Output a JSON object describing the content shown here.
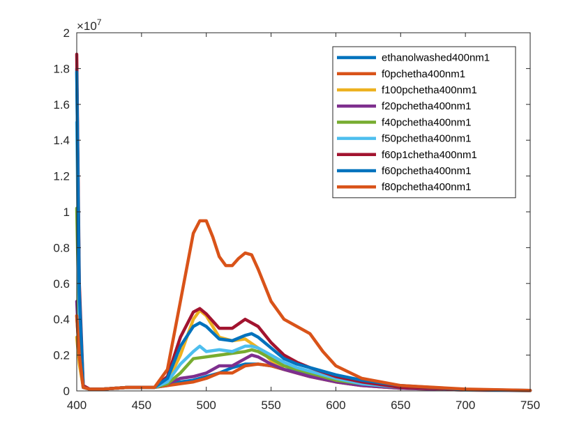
{
  "chart_data": {
    "type": "line",
    "title": "",
    "xlabel": "",
    "ylabel": "",
    "xlim": [
      400,
      750
    ],
    "ylim": [
      0,
      2
    ],
    "y_exponent_label": "×10",
    "y_exponent_power": "7",
    "x_ticks": [
      400,
      450,
      500,
      550,
      600,
      650,
      700,
      750
    ],
    "y_ticks": [
      0,
      0.2,
      0.4,
      0.6,
      0.8,
      1,
      1.2,
      1.4,
      1.6,
      1.8,
      2
    ],
    "x_tick_labels": [
      "400",
      "450",
      "500",
      "550",
      "600",
      "650",
      "700",
      "750"
    ],
    "y_tick_labels": [
      "0",
      "0.2",
      "0.4",
      "0.6",
      "0.8",
      "1",
      "1.2",
      "1.4",
      "1.6",
      "1.8",
      "2"
    ],
    "grid": false,
    "legend_position": "top-right",
    "series": [
      {
        "name": "ethanolwashed400nm1",
        "color": "#0072BD",
        "x": [
          400,
          402,
          405,
          410,
          420,
          440,
          460,
          470,
          480,
          490,
          500,
          510,
          520,
          530,
          540,
          550,
          560,
          570,
          580,
          600,
          620,
          650,
          700,
          750
        ],
        "y": [
          1.8,
          0.5,
          0.02,
          0.01,
          0.01,
          0.02,
          0.02,
          0.03,
          0.05,
          0.06,
          0.08,
          0.1,
          0.13,
          0.15,
          0.15,
          0.14,
          0.12,
          0.11,
          0.09,
          0.06,
          0.04,
          0.02,
          0.008,
          0.003
        ]
      },
      {
        "name": "f0pchetha400nm1",
        "color": "#D95319",
        "x": [
          400,
          402,
          405,
          410,
          420,
          440,
          460,
          470,
          480,
          490,
          500,
          510,
          520,
          530,
          540,
          550,
          560,
          570,
          580,
          600,
          620,
          650,
          700,
          750
        ],
        "y": [
          0.42,
          0.2,
          0.02,
          0.01,
          0.01,
          0.02,
          0.02,
          0.03,
          0.04,
          0.05,
          0.07,
          0.1,
          0.1,
          0.14,
          0.15,
          0.14,
          0.12,
          0.1,
          0.08,
          0.05,
          0.03,
          0.015,
          0.005,
          0.002
        ]
      },
      {
        "name": "f100pchetha400nm1",
        "color": "#EDB120",
        "x": [
          400,
          402,
          405,
          410,
          420,
          440,
          460,
          470,
          480,
          490,
          495,
          500,
          510,
          520,
          530,
          540,
          550,
          560,
          570,
          580,
          600,
          620,
          650,
          700,
          750
        ],
        "y": [
          0.3,
          0.15,
          0.02,
          0.01,
          0.01,
          0.02,
          0.02,
          0.05,
          0.2,
          0.4,
          0.45,
          0.42,
          0.3,
          0.28,
          0.29,
          0.24,
          0.17,
          0.12,
          0.1,
          0.08,
          0.05,
          0.03,
          0.015,
          0.005,
          0.002
        ]
      },
      {
        "name": "f20pchetha400nm1",
        "color": "#7E2F8E",
        "x": [
          400,
          402,
          405,
          410,
          420,
          440,
          460,
          470,
          480,
          490,
          500,
          510,
          520,
          530,
          535,
          540,
          550,
          560,
          570,
          580,
          600,
          620,
          650,
          700,
          750
        ],
        "y": [
          0.5,
          0.2,
          0.02,
          0.01,
          0.01,
          0.02,
          0.02,
          0.04,
          0.07,
          0.08,
          0.1,
          0.14,
          0.14,
          0.18,
          0.2,
          0.19,
          0.15,
          0.12,
          0.1,
          0.08,
          0.05,
          0.03,
          0.015,
          0.005,
          0.002
        ]
      },
      {
        "name": "f40pchetha400nm1",
        "color": "#77AC30",
        "x": [
          400,
          402,
          405,
          410,
          420,
          440,
          460,
          470,
          480,
          490,
          500,
          510,
          520,
          530,
          535,
          540,
          550,
          560,
          570,
          580,
          600,
          620,
          650,
          700,
          750
        ],
        "y": [
          1.02,
          0.3,
          0.02,
          0.01,
          0.01,
          0.02,
          0.02,
          0.04,
          0.1,
          0.18,
          0.19,
          0.2,
          0.21,
          0.22,
          0.23,
          0.22,
          0.18,
          0.14,
          0.12,
          0.1,
          0.06,
          0.04,
          0.02,
          0.006,
          0.002
        ]
      },
      {
        "name": "f50pchetha400nm1",
        "color": "#4DBEEE",
        "x": [
          400,
          402,
          405,
          410,
          420,
          440,
          460,
          470,
          480,
          490,
          495,
          500,
          510,
          520,
          530,
          535,
          540,
          550,
          560,
          570,
          580,
          600,
          620,
          650,
          700,
          750
        ],
        "y": [
          1.5,
          0.4,
          0.02,
          0.01,
          0.01,
          0.02,
          0.02,
          0.05,
          0.15,
          0.22,
          0.25,
          0.22,
          0.23,
          0.22,
          0.25,
          0.25,
          0.24,
          0.2,
          0.16,
          0.13,
          0.11,
          0.07,
          0.04,
          0.02,
          0.006,
          0.002
        ]
      },
      {
        "name": "f60p1chetha400nm1",
        "color": "#A2142F",
        "x": [
          400,
          402,
          405,
          410,
          420,
          440,
          460,
          470,
          480,
          490,
          495,
          500,
          510,
          520,
          530,
          540,
          550,
          560,
          570,
          580,
          600,
          620,
          650,
          700,
          750
        ],
        "y": [
          1.88,
          0.6,
          0.03,
          0.01,
          0.01,
          0.02,
          0.02,
          0.08,
          0.3,
          0.44,
          0.46,
          0.43,
          0.35,
          0.35,
          0.4,
          0.36,
          0.27,
          0.2,
          0.16,
          0.13,
          0.08,
          0.05,
          0.02,
          0.007,
          0.002
        ]
      },
      {
        "name": "f60pchetha400nm1",
        "color": "#0072BD",
        "x": [
          400,
          402,
          405,
          410,
          420,
          440,
          460,
          470,
          480,
          490,
          495,
          500,
          510,
          520,
          530,
          535,
          540,
          550,
          560,
          570,
          580,
          600,
          620,
          650,
          700,
          750
        ],
        "y": [
          1.78,
          0.55,
          0.02,
          0.01,
          0.01,
          0.02,
          0.02,
          0.07,
          0.25,
          0.36,
          0.38,
          0.36,
          0.29,
          0.28,
          0.31,
          0.32,
          0.3,
          0.24,
          0.18,
          0.15,
          0.13,
          0.09,
          0.06,
          0.03,
          0.008,
          0.002
        ]
      },
      {
        "name": "f80pchetha400nm1",
        "color": "#D95319",
        "x": [
          400,
          402,
          405,
          410,
          420,
          440,
          460,
          470,
          480,
          490,
          495,
          500,
          505,
          510,
          515,
          520,
          525,
          530,
          535,
          540,
          550,
          560,
          570,
          580,
          590,
          600,
          620,
          650,
          700,
          750
        ],
        "y": [
          0.42,
          0.2,
          0.02,
          0.01,
          0.01,
          0.02,
          0.02,
          0.12,
          0.5,
          0.88,
          0.95,
          0.95,
          0.86,
          0.75,
          0.7,
          0.7,
          0.74,
          0.77,
          0.76,
          0.68,
          0.5,
          0.4,
          0.36,
          0.32,
          0.22,
          0.14,
          0.07,
          0.03,
          0.01,
          0.003
        ]
      }
    ]
  }
}
